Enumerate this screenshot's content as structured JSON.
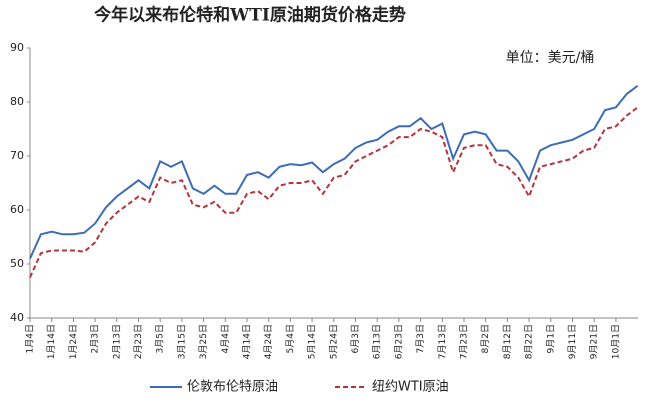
{
  "chart_data": {
    "type": "line",
    "title": "今年以来布伦特和WTI原油期货价格走势",
    "annotation": "单位：美元/桶",
    "categories": [
      "1月4日",
      null,
      "1月14日",
      null,
      "1月24日",
      null,
      "2月3日",
      null,
      "2月13日",
      null,
      "2月23日",
      null,
      "3月5日",
      null,
      "3月15日",
      null,
      "3月25日",
      null,
      "4月4日",
      null,
      "4月14日",
      null,
      "4月24日",
      null,
      "5月4日",
      null,
      "5月14日",
      null,
      "5月24日",
      null,
      "6月3日",
      null,
      "6月13日",
      null,
      "6月23日",
      null,
      "7月3日",
      null,
      "7月13日",
      null,
      "7月23日",
      null,
      "8月2日",
      null,
      "8月12日",
      null,
      "8月22日",
      null,
      "9月1日",
      null,
      "9月11日",
      null,
      "9月21日",
      null,
      "10月1日",
      null,
      null
    ],
    "series": [
      {
        "name": "伦敦布伦特原油",
        "color": "#3d6db5",
        "dash": false,
        "values": [
          51,
          55.5,
          56,
          55.5,
          55.5,
          55.8,
          57.5,
          60.5,
          62.5,
          64,
          65.5,
          64,
          69,
          68,
          69,
          64,
          63,
          64.5,
          63,
          63,
          66.5,
          67,
          66,
          68,
          68.5,
          68.3,
          68.8,
          67,
          68.5,
          69.5,
          71.5,
          72.5,
          73,
          74.5,
          75.5,
          75.5,
          77,
          75,
          76,
          69.5,
          74,
          74.5,
          74,
          71,
          71,
          69,
          65.5,
          71,
          72,
          72.5,
          73,
          74,
          75,
          78.5,
          79,
          81.5,
          83
        ]
      },
      {
        "name": "纽约WTI原油",
        "color": "#b5343a",
        "dash": true,
        "values": [
          47.5,
          52,
          52.5,
          52.5,
          52.5,
          52.3,
          54,
          57.5,
          59.5,
          61,
          62.5,
          61.5,
          66,
          65,
          65.5,
          61,
          60.5,
          61.5,
          59.5,
          59.5,
          63,
          63.5,
          62,
          64.5,
          65,
          65,
          65.5,
          63,
          66,
          66.5,
          69,
          70,
          71,
          72,
          73.5,
          73.5,
          75,
          74.5,
          73.5,
          67,
          71.5,
          72,
          72,
          68.5,
          68,
          66,
          62.5,
          68,
          68.5,
          69,
          69.5,
          71,
          71.5,
          75,
          75.5,
          77.5,
          79
        ]
      }
    ],
    "ylim": [
      40,
      90
    ],
    "yticks": [
      40,
      50,
      60,
      70,
      80,
      90
    ],
    "grid": false
  }
}
